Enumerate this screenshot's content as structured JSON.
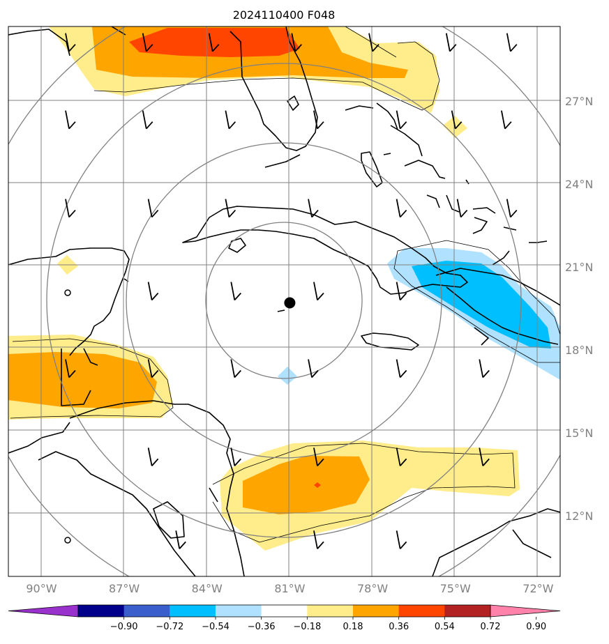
{
  "title": "2024110400 F048",
  "center_marker": {
    "lon": -81.0,
    "lat": 19.7
  },
  "lon_ticks": [
    "90°W",
    "87°W",
    "84°W",
    "81°W",
    "78°W",
    "75°W",
    "72°W"
  ],
  "lon_values": [
    -90,
    -87,
    -84,
    -81,
    -78,
    -75,
    -72
  ],
  "lat_ticks": [
    "27°N",
    "24°N",
    "21°N",
    "18°N",
    "15°N",
    "12°N"
  ],
  "lat_values": [
    27,
    24,
    21,
    18,
    15,
    12
  ],
  "extent": {
    "lon_min": -91.2,
    "lon_max": -71.2,
    "lat_min": 9.8,
    "lat_max": 29.7
  },
  "colorbar": {
    "colors": [
      "#9932cc",
      "#00008b",
      "#3a5fcd",
      "#00bfff",
      "#b0e2ff",
      "#ffffff",
      "#ffec8b",
      "#ffa500",
      "#ff4500",
      "#b22222",
      "#ff82ab"
    ],
    "tick_labels": [
      "−0.90",
      "−0.72",
      "−0.54",
      "−0.36",
      "−0.18",
      "0.18",
      "0.36",
      "0.54",
      "0.72",
      "0.90"
    ]
  },
  "range_rings_deg": [
    3,
    6,
    9,
    12
  ],
  "wind_barbs": [
    {
      "lon": -89.0,
      "lat": 28.8
    },
    {
      "lon": -86.2,
      "lat": 28.8
    },
    {
      "lon": -83.8,
      "lat": 28.8
    },
    {
      "lon": -80.8,
      "lat": 28.8
    },
    {
      "lon": -78.0,
      "lat": 28.8
    },
    {
      "lon": -75.2,
      "lat": 28.8
    },
    {
      "lon": -73.0,
      "lat": 28.8
    },
    {
      "lon": -89.0,
      "lat": 26.0
    },
    {
      "lon": -86.2,
      "lat": 26.0
    },
    {
      "lon": -83.2,
      "lat": 26.0
    },
    {
      "lon": -80.0,
      "lat": 26.0
    },
    {
      "lon": -77.0,
      "lat": 26.0
    },
    {
      "lon": -75.0,
      "lat": 26.0
    },
    {
      "lon": -73.2,
      "lat": 26.0
    },
    {
      "lon": -89.0,
      "lat": 22.8
    },
    {
      "lon": -86.0,
      "lat": 22.8
    },
    {
      "lon": -83.2,
      "lat": 22.8
    },
    {
      "lon": -80.2,
      "lat": 22.8
    },
    {
      "lon": -77.0,
      "lat": 22.8
    },
    {
      "lon": -74.8,
      "lat": 22.8
    },
    {
      "lon": -73.0,
      "lat": 22.8
    },
    {
      "lon": -86.0,
      "lat": 19.8
    },
    {
      "lon": -83.0,
      "lat": 19.8
    },
    {
      "lon": -80.0,
      "lat": 19.8
    },
    {
      "lon": -77.0,
      "lat": 19.8
    },
    {
      "lon": -89.0,
      "lat": 17.0
    },
    {
      "lon": -86.0,
      "lat": 17.0
    },
    {
      "lon": -83.0,
      "lat": 17.0
    },
    {
      "lon": -80.2,
      "lat": 17.0
    },
    {
      "lon": -77.0,
      "lat": 17.0
    },
    {
      "lon": -74.0,
      "lat": 17.0
    },
    {
      "lon": -86.0,
      "lat": 13.8
    },
    {
      "lon": -83.0,
      "lat": 13.8
    },
    {
      "lon": -80.0,
      "lat": 13.8
    },
    {
      "lon": -77.0,
      "lat": 13.8
    },
    {
      "lon": -74.0,
      "lat": 13.8
    },
    {
      "lon": -85.0,
      "lat": 10.8
    },
    {
      "lon": -80.0,
      "lat": 10.8
    },
    {
      "lon": -77.0,
      "lat": 10.8
    }
  ]
}
